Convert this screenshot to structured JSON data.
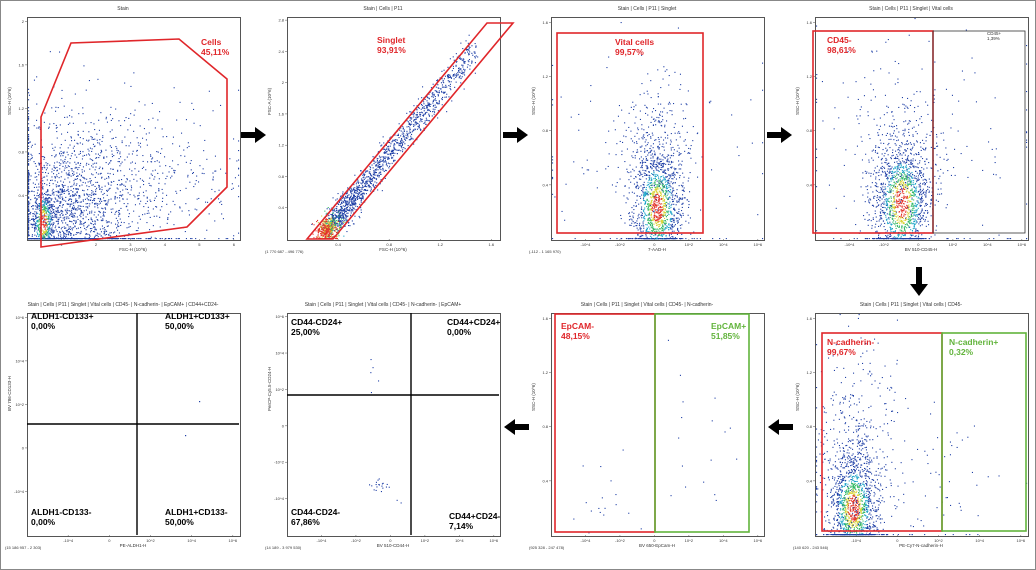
{
  "colors": {
    "gate_red": "#e0262a",
    "gate_green": "#62b43c",
    "dot_blue": "#1e3fa6",
    "axis": "#555555",
    "arrow": "#000000",
    "quad_line": "#000000"
  },
  "chart_data": [
    {
      "type": "scatter",
      "title": "Stain",
      "xlabel": "FSC-H (10^6)",
      "ylabel": "SSC-H (10^6)",
      "xlim": [
        0,
        6
      ],
      "ylim": [
        0,
        2
      ],
      "x_ticks": [
        "1",
        "2",
        "3",
        "4",
        "5",
        "6"
      ],
      "y_ticks": [
        "0.4",
        "0.8",
        "1.2",
        "1.6",
        "2"
      ],
      "gates": [
        {
          "name": "Cells",
          "percent": "45,11%",
          "shape": "polygon",
          "color": "red"
        }
      ]
    },
    {
      "type": "scatter",
      "title": "Stain | Cells | P11",
      "xlabel": "FSC-H (10^6)",
      "ylabel": "FSC-A (10^6)",
      "xrange_label": "(1 770 687 - 496 776)",
      "xlim": [
        0,
        1.6
      ],
      "ylim": [
        0,
        2.8
      ],
      "x_ticks": [
        "0.4",
        "0.8",
        "1.2",
        "1.6"
      ],
      "y_ticks": [
        "0.4",
        "0.8",
        "1.2",
        "1.6",
        "2",
        "2.4",
        "2.8"
      ],
      "gates": [
        {
          "name": "Singlet",
          "percent": "93,91%",
          "shape": "parallelogram",
          "color": "red"
        }
      ]
    },
    {
      "type": "scatter",
      "title": "Stain | Cells | P11 | Singlet",
      "xlabel": "7-AAD-H",
      "ylabel": "SSC-H (10^6)",
      "xrange_label": "(-112 - 1 165 970)",
      "x_ticks": [
        "-10^4",
        "-10^2",
        "0",
        "10^2",
        "10^4",
        "10^6"
      ],
      "y_ticks": [
        "0.4",
        "0.8",
        "1.2",
        "1.6"
      ],
      "gates": [
        {
          "name": "Vital cells",
          "percent": "99,57%",
          "shape": "rectangle",
          "color": "red"
        }
      ]
    },
    {
      "type": "scatter",
      "title": "Stain | Cells | P11 | Singlet | Vital cells",
      "xlabel": "BV 510-CD45-H",
      "ylabel": "SSC-H (10^6)",
      "x_ticks": [
        "-10^4",
        "-10^2",
        "0",
        "10^2",
        "10^4",
        "10^6"
      ],
      "y_ticks": [
        "0.4",
        "0.8",
        "1.2",
        "1.6"
      ],
      "gates": [
        {
          "name": "CD45-",
          "percent": "98,61%",
          "shape": "rectangle",
          "color": "red"
        },
        {
          "name": "CD45+",
          "percent": "1,39%",
          "shape": "rectangle",
          "color": "black"
        }
      ]
    },
    {
      "type": "scatter",
      "title": "Stain | Cells | P11 | Singlet | Vital cells | CD45-",
      "xlabel": "PE-Cy7-N-cadherin-H",
      "ylabel": "SSC-H (10^6)",
      "xrange_label": "(140 620 - 243 546)",
      "x_ticks": [
        "-10^4",
        "0",
        "10^2",
        "10^4",
        "10^6"
      ],
      "y_ticks": [
        "0.4",
        "0.8",
        "1.2",
        "1.6"
      ],
      "gates": [
        {
          "name": "N-cadherin-",
          "percent": "99,67%",
          "shape": "rectangle",
          "color": "red"
        },
        {
          "name": "N-cadherin+",
          "percent": "0,32%",
          "shape": "rectangle",
          "color": "green"
        }
      ]
    },
    {
      "type": "scatter",
      "title": "Stain | Cells | P11 | Singlet | Vital cells | CD45- | N-cadherin-",
      "xlabel": "BV 650-EpCam-H",
      "ylabel": "SSC-H (10^6)",
      "xrange_label": "(925 328 - 247 478)",
      "x_ticks": [
        "-10^4",
        "-10^2",
        "0",
        "10^2",
        "10^4",
        "10^6"
      ],
      "y_ticks": [
        "0.4",
        "0.8",
        "1.2",
        "1.6"
      ],
      "gates": [
        {
          "name": "EpCAM-",
          "percent": "48,15%",
          "shape": "rectangle",
          "color": "red"
        },
        {
          "name": "EpCAM+",
          "percent": "51,85%",
          "shape": "rectangle",
          "color": "green"
        }
      ]
    },
    {
      "type": "scatter",
      "title": "Stain | Cells | P11 | Singlet | Vital cells | CD45- | N-cadherin- | EpCAM+",
      "xlabel": "BV 510-CD44-H",
      "ylabel": "PerCP-Cy5.5-CD24-H",
      "xrange_label": "(14 189 - 3 979 530)",
      "x_ticks": [
        "-10^4",
        "-10^2",
        "0",
        "10^2",
        "10^4",
        "10^6"
      ],
      "y_ticks": [
        "-10^4",
        "-10^2",
        "0",
        "10^2",
        "10^4",
        "10^6"
      ],
      "quadrants": [
        {
          "name": "CD44-CD24+",
          "percent": "25,00%",
          "pos": "top-left"
        },
        {
          "name": "CD44+CD24+",
          "percent": "0,00%",
          "pos": "top-right"
        },
        {
          "name": "CD44-CD24-",
          "percent": "67,86%",
          "pos": "bottom-left"
        },
        {
          "name": "CD44+CD24-",
          "percent": "7,14%",
          "pos": "bottom-right"
        }
      ]
    },
    {
      "type": "scatter",
      "title": "Stain | Cells | P11 | Singlet | Vital cells | CD45- | N-cadherin- | EpCAM+ | CD44+CD24-",
      "xlabel": "PE-ALDH1-H",
      "ylabel": "BV 786-CD133-H",
      "xrange_label": "(15 186 957 - 2 303)",
      "x_ticks": [
        "-10^4",
        "0",
        "10^2",
        "10^4",
        "10^6"
      ],
      "y_ticks": [
        "-10^4",
        "0",
        "10^2",
        "10^4",
        "10^6"
      ],
      "quadrants": [
        {
          "name": "ALDH1-CD133+",
          "percent": "0,00%",
          "pos": "top-left"
        },
        {
          "name": "ALDH1+CD133+",
          "percent": "50,00%",
          "pos": "top-right"
        },
        {
          "name": "ALDH1-CD133-",
          "percent": "0,00%",
          "pos": "bottom-left"
        },
        {
          "name": "ALDH1+CD133-",
          "percent": "50,00%",
          "pos": "bottom-right"
        }
      ]
    }
  ]
}
